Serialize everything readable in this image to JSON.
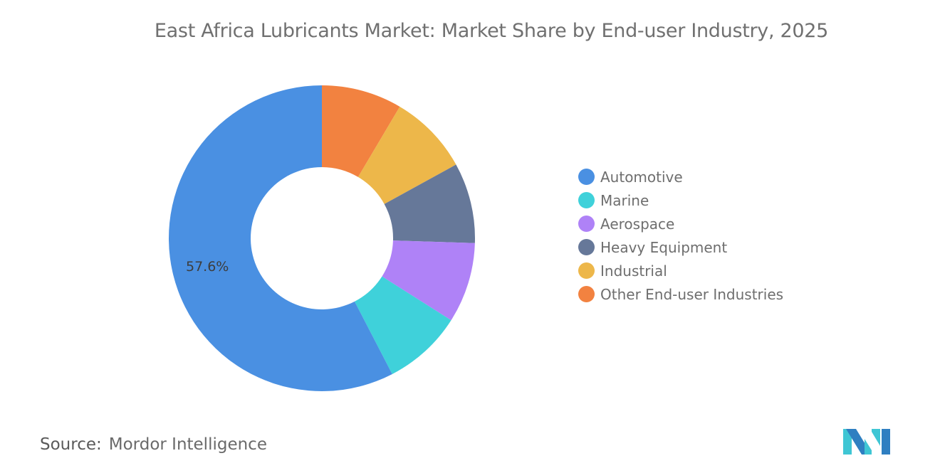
{
  "chart_data": {
    "type": "pie",
    "donut": true,
    "title": "East Africa Lubricants Market: Market Share by End-user Industry, 2025",
    "slices": [
      {
        "label": "Other End-user Industries",
        "value": 8.5,
        "color": "#F28240"
      },
      {
        "label": "Industrial",
        "value": 8.5,
        "color": "#EDB74A"
      },
      {
        "label": "Heavy Equipment",
        "value": 8.5,
        "color": "#667899"
      },
      {
        "label": "Aerospace",
        "value": 8.5,
        "color": "#AF82F7"
      },
      {
        "label": "Marine",
        "value": 8.4,
        "color": "#3FD1DA"
      },
      {
        "label": "Automotive",
        "value": 57.6,
        "color": "#4A90E2",
        "data_label": "57.6%"
      }
    ],
    "legend": {
      "placement": "right",
      "items": [
        {
          "label": "Automotive",
          "color": "#4A90E2"
        },
        {
          "label": "Marine",
          "color": "#3FD1DA"
        },
        {
          "label": "Aerospace",
          "color": "#AF82F7"
        },
        {
          "label": "Heavy Equipment",
          "color": "#667899"
        },
        {
          "label": "Industrial",
          "color": "#EDB74A"
        },
        {
          "label": "Other End-user Industries",
          "color": "#F28240"
        }
      ]
    }
  },
  "source": {
    "label": "Source:",
    "value": "Mordor Intelligence"
  },
  "logo": {
    "name": "Mordor Intelligence logo",
    "text": "MI"
  }
}
